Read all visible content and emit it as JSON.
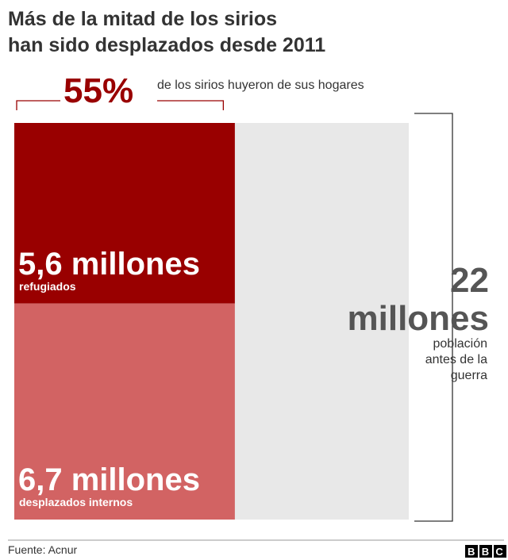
{
  "chart_data": {
    "type": "proportional-area",
    "title": [
      "Más de la mitad de los sirios",
      "han sido desplazados desde 2011"
    ],
    "share": {
      "value": 55,
      "label": "55%",
      "text": "de los sirios huyeron de sus hogares"
    },
    "series": [
      {
        "name": "refugiados",
        "value": 5.6,
        "value_label": "5,6 millones",
        "color": "#990000"
      },
      {
        "name": "desplazados internos",
        "value": 6.7,
        "value_label": "6,7 millones",
        "color": "#d26363"
      }
    ],
    "total": {
      "name": "población antes de la guerra",
      "value": 22,
      "value_label": "22 millones",
      "color": "#e8e8e8"
    },
    "source": "Fuente: Acnur",
    "logo": "BBC"
  }
}
